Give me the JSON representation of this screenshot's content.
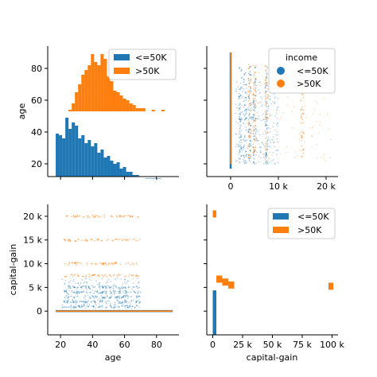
{
  "colors": {
    "le50k": "#1f77b4",
    "gt50k": "#ff7f0e"
  },
  "chart_data": [
    {
      "type": "bar",
      "panel": "top-left",
      "xlabel": "",
      "ylabel": "age",
      "legend": {
        "placement": "top-right",
        "entries": [
          "<=50K",
          ">50K"
        ]
      },
      "series": [
        {
          "name": "<=50K",
          "bins": [
            [
              17,
              19,
              39
            ],
            [
              19,
              21,
              38
            ],
            [
              21,
              23,
              36
            ],
            [
              23,
              25,
              49
            ],
            [
              25,
              27,
              42
            ],
            [
              27,
              29,
              46
            ],
            [
              29,
              31,
              44
            ],
            [
              31,
              33,
              36
            ],
            [
              33,
              35,
              38
            ],
            [
              35,
              37,
              33
            ],
            [
              37,
              39,
              35
            ],
            [
              39,
              41,
              31
            ],
            [
              41,
              43,
              33
            ],
            [
              43,
              45,
              27
            ],
            [
              45,
              47,
              29
            ],
            [
              47,
              49,
              24
            ],
            [
              49,
              51,
              25
            ],
            [
              51,
              53,
              22
            ],
            [
              53,
              55,
              20
            ],
            [
              55,
              57,
              21
            ],
            [
              57,
              59,
              17
            ],
            [
              59,
              61,
              18
            ],
            [
              61,
              63,
              15
            ],
            [
              63,
              65,
              15
            ],
            [
              65,
              67,
              13
            ],
            [
              67,
              69,
              13
            ],
            [
              69,
              71,
              12
            ],
            [
              71,
              73,
              12
            ],
            [
              73,
              75,
              11
            ],
            [
              75,
              77,
              11
            ],
            [
              77,
              79,
              11
            ],
            [
              79,
              81,
              11
            ],
            [
              81,
              83,
              11
            ]
          ]
        },
        {
          "name": ">50K",
          "bins": [
            [
              25,
              27,
              54
            ],
            [
              27,
              29,
              58
            ],
            [
              29,
              31,
              65
            ],
            [
              31,
              33,
              70
            ],
            [
              33,
              35,
              76
            ],
            [
              35,
              37,
              79
            ],
            [
              37,
              39,
              82
            ],
            [
              39,
              41,
              89
            ],
            [
              41,
              43,
              84
            ],
            [
              43,
              45,
              82
            ],
            [
              45,
              47,
              89
            ],
            [
              47,
              49,
              86
            ],
            [
              49,
              51,
              75
            ],
            [
              51,
              53,
              72
            ],
            [
              53,
              55,
              66
            ],
            [
              55,
              57,
              65
            ],
            [
              57,
              59,
              63
            ],
            [
              59,
              61,
              61
            ],
            [
              61,
              63,
              60
            ],
            [
              63,
              65,
              58
            ],
            [
              65,
              67,
              57
            ],
            [
              67,
              69,
              55
            ],
            [
              69,
              71,
              55
            ],
            [
              71,
              73,
              55
            ],
            [
              77,
              79,
              54
            ],
            [
              83,
              85,
              54
            ]
          ]
        }
      ],
      "x_ticks": [
        20,
        40,
        60,
        80
      ],
      "y_ticks": [
        20,
        40,
        60,
        80
      ],
      "ylim": [
        12,
        94
      ]
    },
    {
      "type": "scatter",
      "panel": "top-right",
      "xlabel": "",
      "ylabel": "",
      "legend": {
        "placement": "top-right",
        "title": "income",
        "entries": [
          "<=50K",
          ">50K"
        ]
      },
      "x_ticks": [
        0,
        10000,
        20000
      ],
      "x_tick_labels": [
        "0",
        "10 k",
        "20 k"
      ],
      "xlim": [
        -5000,
        22500
      ],
      "ylim": [
        12,
        94
      ],
      "series": [
        {
          "name": "<=50K",
          "x": [
            0,
            2000,
            3000,
            4000,
            5000,
            7500
          ],
          "y_range": [
            17,
            90
          ]
        },
        {
          "name": ">50K",
          "x": [
            0,
            4000,
            5000,
            7500,
            15000
          ],
          "y_range": [
            20,
            90
          ]
        }
      ]
    },
    {
      "type": "scatter",
      "panel": "bottom-left",
      "xlabel": "age",
      "ylabel": "capital-gain",
      "x_ticks": [
        20,
        40,
        60,
        80
      ],
      "y_ticks": [
        0,
        5000,
        10000,
        15000,
        20000
      ],
      "y_tick_labels": [
        "0",
        "5 k",
        "10 k",
        "15 k",
        "20 k"
      ],
      "xlim": [
        12,
        94
      ],
      "ylim": [
        -5000,
        22500
      ],
      "series": [
        {
          "name": "<=50K",
          "x_range": [
            17,
            90
          ],
          "y": [
            0,
            1000,
            2000,
            3000,
            4000,
            5000
          ]
        },
        {
          "name": ">50K",
          "x_range": [
            17,
            90
          ],
          "y": [
            0,
            7500,
            10000,
            15000,
            20000
          ]
        }
      ]
    },
    {
      "type": "bar",
      "panel": "bottom-right",
      "xlabel": "capital-gain",
      "ylabel": "",
      "legend": {
        "placement": "top-right",
        "entries": [
          "<=50K",
          ">50K"
        ]
      },
      "x_ticks": [
        0,
        25000,
        50000,
        75000,
        100000
      ],
      "x_tick_labels": [
        "0",
        "25 k",
        "50 k",
        "75 k",
        "100 k"
      ],
      "xlim": [
        -5000,
        105000
      ],
      "series": [
        {
          "name": "<=50K",
          "bins": [
            [
              0,
              3000,
              7500
            ]
          ]
        },
        {
          "name": ">50K",
          "bins": [
            [
              0,
              3000,
              21000
            ],
            [
              3000,
              8000,
              10000
            ],
            [
              8000,
              13000,
              9500
            ],
            [
              13000,
              18000,
              9000
            ],
            [
              97000,
              101000,
              8800
            ]
          ]
        }
      ]
    }
  ],
  "labels": {
    "age_axis": "age",
    "gain_axis": "capital-gain",
    "legend_title": "income",
    "le50k": "<=50K",
    "gt50k": ">50K"
  }
}
